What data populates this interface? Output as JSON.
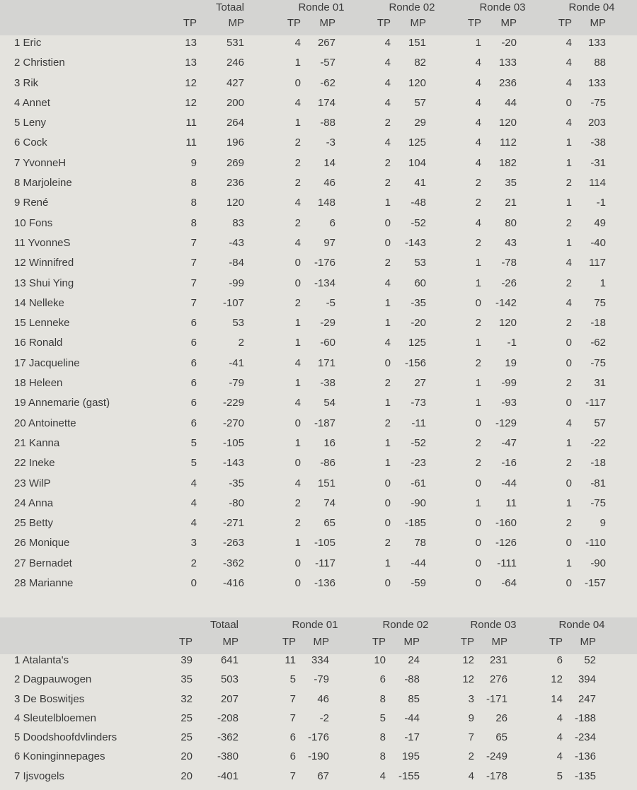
{
  "individual": {
    "groups": [
      "Totaal",
      "Ronde 01",
      "Ronde 02",
      "Ronde 03",
      "Ronde 04"
    ],
    "subheaders": [
      "TP",
      "MP",
      "TP",
      "MP",
      "TP",
      "MP",
      "TP",
      "MP",
      "TP",
      "MP"
    ],
    "rows": [
      [
        "1 Eric",
        "13",
        "531",
        "4",
        "267",
        "4",
        "151",
        "1",
        "-20",
        "4",
        "133"
      ],
      [
        "2 Christien",
        "13",
        "246",
        "1",
        "-57",
        "4",
        "82",
        "4",
        "133",
        "4",
        "88"
      ],
      [
        "3 Rik",
        "12",
        "427",
        "0",
        "-62",
        "4",
        "120",
        "4",
        "236",
        "4",
        "133"
      ],
      [
        "4 Annet",
        "12",
        "200",
        "4",
        "174",
        "4",
        "57",
        "4",
        "44",
        "0",
        "-75"
      ],
      [
        "5 Leny",
        "11",
        "264",
        "1",
        "-88",
        "2",
        "29",
        "4",
        "120",
        "4",
        "203"
      ],
      [
        "6 Cock",
        "11",
        "196",
        "2",
        "-3",
        "4",
        "125",
        "4",
        "112",
        "1",
        "-38"
      ],
      [
        "7 YvonneH",
        "9",
        "269",
        "2",
        "14",
        "2",
        "104",
        "4",
        "182",
        "1",
        "-31"
      ],
      [
        "8 Marjoleine",
        "8",
        "236",
        "2",
        "46",
        "2",
        "41",
        "2",
        "35",
        "2",
        "114"
      ],
      [
        "9 René",
        "8",
        "120",
        "4",
        "148",
        "1",
        "-48",
        "2",
        "21",
        "1",
        "-1"
      ],
      [
        "10 Fons",
        "8",
        "83",
        "2",
        "6",
        "0",
        "-52",
        "4",
        "80",
        "2",
        "49"
      ],
      [
        "11 YvonneS",
        "7",
        "-43",
        "4",
        "97",
        "0",
        "-143",
        "2",
        "43",
        "1",
        "-40"
      ],
      [
        "12 Winnifred",
        "7",
        "-84",
        "0",
        "-176",
        "2",
        "53",
        "1",
        "-78",
        "4",
        "117"
      ],
      [
        "13 Shui Ying",
        "7",
        "-99",
        "0",
        "-134",
        "4",
        "60",
        "1",
        "-26",
        "2",
        "1"
      ],
      [
        "14 Nelleke",
        "7",
        "-107",
        "2",
        "-5",
        "1",
        "-35",
        "0",
        "-142",
        "4",
        "75"
      ],
      [
        "15 Lenneke",
        "6",
        "53",
        "1",
        "-29",
        "1",
        "-20",
        "2",
        "120",
        "2",
        "-18"
      ],
      [
        "16 Ronald",
        "6",
        "2",
        "1",
        "-60",
        "4",
        "125",
        "1",
        "-1",
        "0",
        "-62"
      ],
      [
        "17 Jacqueline",
        "6",
        "-41",
        "4",
        "171",
        "0",
        "-156",
        "2",
        "19",
        "0",
        "-75"
      ],
      [
        "18 Heleen",
        "6",
        "-79",
        "1",
        "-38",
        "2",
        "27",
        "1",
        "-99",
        "2",
        "31"
      ],
      [
        "19 Annemarie (gast)",
        "6",
        "-229",
        "4",
        "54",
        "1",
        "-73",
        "1",
        "-93",
        "0",
        "-117"
      ],
      [
        "20 Antoinette",
        "6",
        "-270",
        "0",
        "-187",
        "2",
        "-11",
        "0",
        "-129",
        "4",
        "57"
      ],
      [
        "21 Kanna",
        "5",
        "-105",
        "1",
        "16",
        "1",
        "-52",
        "2",
        "-47",
        "1",
        "-22"
      ],
      [
        "22 Ineke",
        "5",
        "-143",
        "0",
        "-86",
        "1",
        "-23",
        "2",
        "-16",
        "2",
        "-18"
      ],
      [
        "23 WilP",
        "4",
        "-35",
        "4",
        "151",
        "0",
        "-61",
        "0",
        "-44",
        "0",
        "-81"
      ],
      [
        "24 Anna",
        "4",
        "-80",
        "2",
        "74",
        "0",
        "-90",
        "1",
        "11",
        "1",
        "-75"
      ],
      [
        "25 Betty",
        "4",
        "-271",
        "2",
        "65",
        "0",
        "-185",
        "0",
        "-160",
        "2",
        "9"
      ],
      [
        "26 Monique",
        "3",
        "-263",
        "1",
        "-105",
        "2",
        "78",
        "0",
        "-126",
        "0",
        "-110"
      ],
      [
        "27 Bernadet",
        "2",
        "-362",
        "0",
        "-117",
        "1",
        "-44",
        "0",
        "-111",
        "1",
        "-90"
      ],
      [
        "28 Marianne",
        "0",
        "-416",
        "0",
        "-136",
        "0",
        "-59",
        "0",
        "-64",
        "0",
        "-157"
      ]
    ]
  },
  "teams": {
    "groups": [
      "Totaal",
      "Ronde 01",
      "Ronde 02",
      "Ronde 03",
      "Ronde 04"
    ],
    "subheaders": [
      "TP",
      "MP",
      "TP",
      "MP",
      "TP",
      "MP",
      "TP",
      "MP",
      "TP",
      "MP"
    ],
    "rows": [
      [
        "1 Atalanta's",
        "39",
        "641",
        "11",
        "334",
        "10",
        "24",
        "12",
        "231",
        "6",
        "52"
      ],
      [
        "2 Dagpauwogen",
        "35",
        "503",
        "5",
        "-79",
        "6",
        "-88",
        "12",
        "276",
        "12",
        "394"
      ],
      [
        "3 De Boswitjes",
        "32",
        "207",
        "7",
        "46",
        "8",
        "85",
        "3",
        "-171",
        "14",
        "247"
      ],
      [
        "4 Sleutelbloemen",
        "25",
        "-208",
        "7",
        "-2",
        "5",
        "-44",
        "9",
        "26",
        "4",
        "-188"
      ],
      [
        "5 Doodshoofdvlinders",
        "25",
        "-362",
        "6",
        "-176",
        "8",
        "-17",
        "7",
        "65",
        "4",
        "-234"
      ],
      [
        "6 Koninginnepages",
        "20",
        "-380",
        "6",
        "-190",
        "8",
        "195",
        "2",
        "-249",
        "4",
        "-136"
      ],
      [
        "7 Ijsvogels",
        "20",
        "-401",
        "7",
        "67",
        "4",
        "-155",
        "4",
        "-178",
        "5",
        "-135"
      ]
    ]
  }
}
